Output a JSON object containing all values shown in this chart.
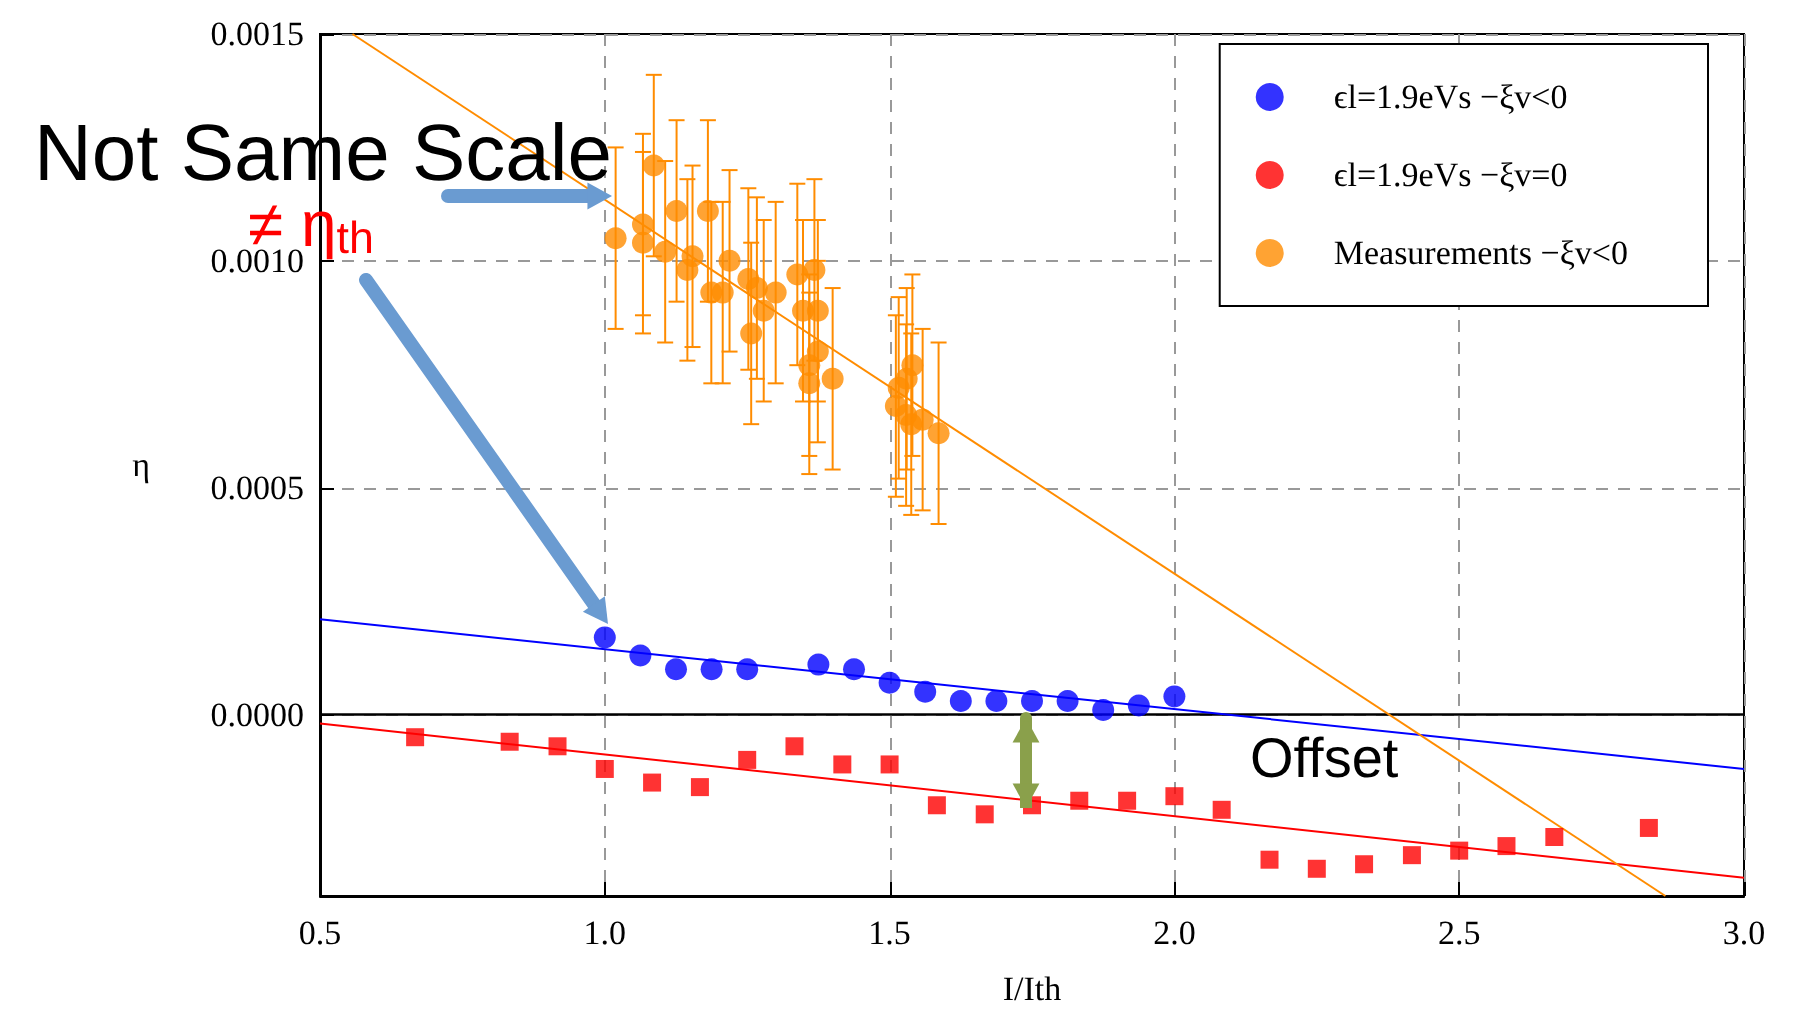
{
  "chart_data": {
    "type": "scatter",
    "xlabel": "I/Ith",
    "ylabel": "η",
    "xlim": [
      0.5,
      3.0
    ],
    "xticks": [
      {
        "value": 0.5,
        "label": "0.5"
      },
      {
        "value": 1,
        "label": "1.0"
      },
      {
        "value": 1.5,
        "label": "1.5"
      },
      {
        "value": 2,
        "label": "2.0"
      },
      {
        "value": 2.5,
        "label": "2.5"
      },
      {
        "value": 3,
        "label": "3.0"
      }
    ],
    "ylim": [
      -0.0004,
      0.0015
    ],
    "yticks": [
      {
        "value": 0,
        "label": "0.0000"
      },
      {
        "value": 0.0005,
        "label": "0.0005"
      },
      {
        "value": 0.001,
        "label": "0.0010"
      },
      {
        "value": 0.0015,
        "label": "0.0015"
      }
    ],
    "grid": true,
    "legend": "top right",
    "ref_lines": [
      {
        "axis": "y",
        "value": 0,
        "color": "#000000",
        "line_style": "solid"
      }
    ],
    "annotations": [
      "Not Same Scale",
      "≠ η$_{th}$",
      "Offset"
    ],
    "series": [
      {
        "name": "ϵl=1.9eVs −ξv<0",
        "marker": "circle",
        "color": "#0000ff",
        "x": [
          1,
          1.0625,
          1.125,
          1.1875,
          1.25,
          1.375,
          1.4375,
          1.5,
          1.5625,
          1.625,
          1.6875,
          1.75,
          1.8125,
          1.875,
          1.9375,
          2
        ],
        "values": [
          0.00017,
          0.00013,
          0.0001,
          0.0001,
          0.0001,
          0.00011,
          0.0001,
          7e-05,
          5e-05,
          3e-05,
          3e-05,
          3e-05,
          3e-05,
          1e-05,
          2e-05,
          4e-05
        ]
      },
      {
        "name": "ϵl=1.9eVs −ξv=0",
        "marker": "square",
        "color": "#ff0000",
        "x": [
          0.667,
          0.833,
          0.917,
          1,
          1.083,
          1.167,
          1.25,
          1.333,
          1.417,
          1.5,
          1.583,
          1.667,
          1.75,
          1.833,
          1.917,
          2,
          2.083,
          2.167,
          2.25,
          2.333,
          2.417,
          2.5,
          2.583,
          2.667,
          2.833
        ],
        "values": [
          -5e-05,
          -6e-05,
          -7e-05,
          -0.00012,
          -0.00015,
          -0.00016,
          -0.0001,
          -7e-05,
          -0.00011,
          -0.00011,
          -0.0002,
          -0.00022,
          -0.0002,
          -0.00019,
          -0.00019,
          -0.00018,
          -0.00021,
          -0.00032,
          -0.00034,
          -0.00033,
          -0.00031,
          -0.0003,
          -0.00029,
          -0.00027,
          -0.00025
        ]
      },
      {
        "name": "Measurements −ξv<0",
        "marker": "circle",
        "color": "#ff8c00",
        "x": [
          1.019,
          1.067,
          1.067,
          1.086,
          1.106,
          1.126,
          1.145,
          1.154,
          1.181,
          1.187,
          1.207,
          1.219,
          1.252,
          1.257,
          1.267,
          1.279,
          1.3,
          1.338,
          1.368,
          1.348,
          1.374,
          1.374,
          1.359,
          1.359,
          1.4,
          1.54,
          1.53,
          1.516,
          1.511,
          1.529,
          1.538,
          1.558,
          1.586
        ],
        "values": [
          0.00105,
          0.00108,
          0.00104,
          0.00121,
          0.00102,
          0.00111,
          0.00098,
          0.00101,
          0.00111,
          0.00093,
          0.00093,
          0.001,
          0.00096,
          0.00084,
          0.00094,
          0.00089,
          0.00093,
          0.00097,
          0.00098,
          0.00089,
          0.00089,
          0.0008,
          0.00077,
          0.00073,
          0.00074,
          0.00077,
          0.00074,
          0.00072,
          0.00068,
          0.00066,
          0.00064,
          0.00065,
          0.00062
        ],
        "errors": [
          0.0002,
          0.0002,
          0.0002,
          0.0002,
          0.0002,
          0.0002,
          0.0002,
          0.0002,
          0.0002,
          0.0002,
          0.0002,
          0.0002,
          0.0002,
          0.0002,
          0.0002,
          0.0002,
          0.0002,
          0.0002,
          0.0002,
          0.0002,
          0.0002,
          0.0002,
          0.0002,
          0.0002,
          0.0002,
          0.0002,
          0.0002,
          0.0002,
          0.0002,
          0.0002,
          0.0002,
          0.0002,
          0.0002
        ]
      },
      {
        "type": "line",
        "marker": "none",
        "color": "#0000ff",
        "x": [
          0.5,
          3.0
        ],
        "values": [
          0.00021,
          -0.00012
        ]
      },
      {
        "type": "line",
        "marker": "none",
        "color": "#ff0000",
        "x": [
          0.5,
          3.0
        ],
        "values": [
          -2e-05,
          -0.00036
        ]
      },
      {
        "type": "line",
        "marker": "none",
        "color": "#ff8c00",
        "x": [
          0.557,
          2.862
        ],
        "values": [
          0.0015,
          -0.0004
        ]
      }
    ]
  }
}
